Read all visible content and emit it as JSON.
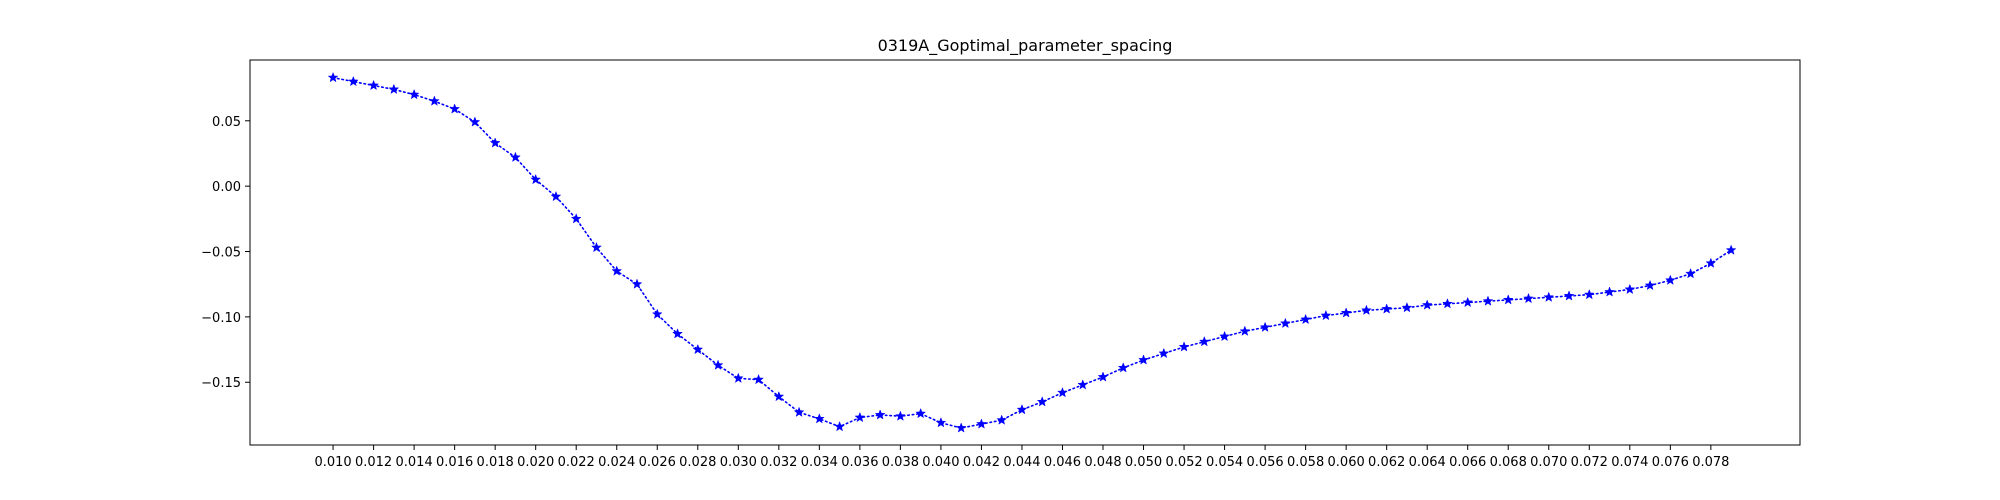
{
  "chart_data": {
    "type": "line",
    "title": "0319A_Goptimal_parameter_spacing",
    "xlabel": "",
    "ylabel": "",
    "xlim": [
      0.0059,
      0.0824
    ],
    "ylim": [
      -0.198,
      0.0965
    ],
    "x_ticks": [
      0.01,
      0.012,
      0.014,
      0.016,
      0.018,
      0.02,
      0.022,
      0.024,
      0.026,
      0.028,
      0.03,
      0.032,
      0.034,
      0.036,
      0.038,
      0.04,
      0.042,
      0.044,
      0.046,
      0.048,
      0.05,
      0.052,
      0.054,
      0.056,
      0.058,
      0.06,
      0.062,
      0.064,
      0.066,
      0.068,
      0.07,
      0.072,
      0.074,
      0.076,
      0.078
    ],
    "x_tick_labels": [
      "0.010",
      "0.012",
      "0.014",
      "0.016",
      "0.018",
      "0.020",
      "0.022",
      "0.024",
      "0.026",
      "0.028",
      "0.030",
      "0.032",
      "0.034",
      "0.036",
      "0.038",
      "0.040",
      "0.042",
      "0.044",
      "0.046",
      "0.048",
      "0.050",
      "0.052",
      "0.054",
      "0.056",
      "0.058",
      "0.060",
      "0.062",
      "0.064",
      "0.066",
      "0.068",
      "0.070",
      "0.072",
      "0.074",
      "0.076",
      "0.078"
    ],
    "y_ticks": [
      0.05,
      0.0,
      -0.05,
      -0.1,
      -0.15
    ],
    "y_tick_labels": [
      "0.05",
      "0.00",
      "−0.05",
      "−0.10",
      "−0.15"
    ],
    "grid": false,
    "legend": false,
    "color": "#0000ff",
    "marker": "star",
    "linestyle": "dotted",
    "series": [
      {
        "x": [
          0.01,
          0.011,
          0.012,
          0.013,
          0.014,
          0.015,
          0.016,
          0.017,
          0.018,
          0.019,
          0.02,
          0.021,
          0.022,
          0.023,
          0.024,
          0.025,
          0.026,
          0.027,
          0.028,
          0.029,
          0.03,
          0.031,
          0.032,
          0.033,
          0.034,
          0.035,
          0.036,
          0.037,
          0.038,
          0.039,
          0.04,
          0.041,
          0.042,
          0.043,
          0.044,
          0.045,
          0.046,
          0.047,
          0.048,
          0.049,
          0.05,
          0.051,
          0.052,
          0.053,
          0.054,
          0.055,
          0.056,
          0.057,
          0.058,
          0.059,
          0.06,
          0.061,
          0.062,
          0.063,
          0.064,
          0.065,
          0.066,
          0.067,
          0.068,
          0.069,
          0.07,
          0.071,
          0.072,
          0.073,
          0.074,
          0.075,
          0.076,
          0.077,
          0.078,
          0.079
        ],
        "y": [
          0.083,
          0.08,
          0.077,
          0.074,
          0.07,
          0.065,
          0.059,
          0.049,
          0.033,
          0.022,
          0.005,
          -0.008,
          -0.025,
          -0.047,
          -0.065,
          -0.075,
          -0.098,
          -0.113,
          -0.125,
          -0.137,
          -0.147,
          -0.148,
          -0.161,
          -0.173,
          -0.178,
          -0.184,
          -0.177,
          -0.175,
          -0.176,
          -0.174,
          -0.181,
          -0.185,
          -0.182,
          -0.179,
          -0.171,
          -0.165,
          -0.158,
          -0.152,
          -0.146,
          -0.139,
          -0.133,
          -0.128,
          -0.123,
          -0.119,
          -0.115,
          -0.111,
          -0.108,
          -0.105,
          -0.102,
          -0.099,
          -0.097,
          -0.095,
          -0.094,
          -0.093,
          -0.091,
          -0.09,
          -0.089,
          -0.088,
          -0.087,
          -0.086,
          -0.085,
          -0.084,
          -0.083,
          -0.081,
          -0.079,
          -0.076,
          -0.072,
          -0.067,
          -0.059,
          -0.049
        ]
      }
    ]
  }
}
